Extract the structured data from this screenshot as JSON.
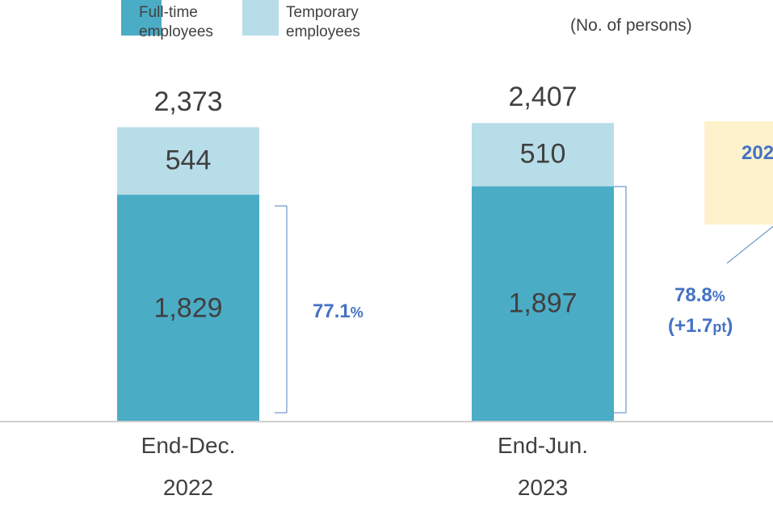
{
  "chart_data": {
    "type": "stacked_bar",
    "unit_label": "(No. of persons)",
    "categories": [
      "End-Dec.\n2022",
      "End-Jun.\n2023"
    ],
    "series": [
      {
        "name": "Full-time\nemployees",
        "color": "#4bacc6",
        "values": [
          1829,
          1897
        ],
        "value_labels": [
          "1,829",
          "1,897"
        ]
      },
      {
        "name": "Temporary\nemployees",
        "color": "#b7dde8",
        "values": [
          544,
          510
        ],
        "value_labels": [
          "544",
          "510"
        ]
      }
    ],
    "total_labels": [
      "2,373",
      "2,407"
    ],
    "ylim": [
      0,
      2500
    ],
    "annotations": [
      [
        "77.1",
        "%"
      ],
      [
        "78.8",
        "%"
      ],
      [
        "(+1.7",
        "pt",
        ")"
      ]
    ],
    "callout_text": "202"
  }
}
